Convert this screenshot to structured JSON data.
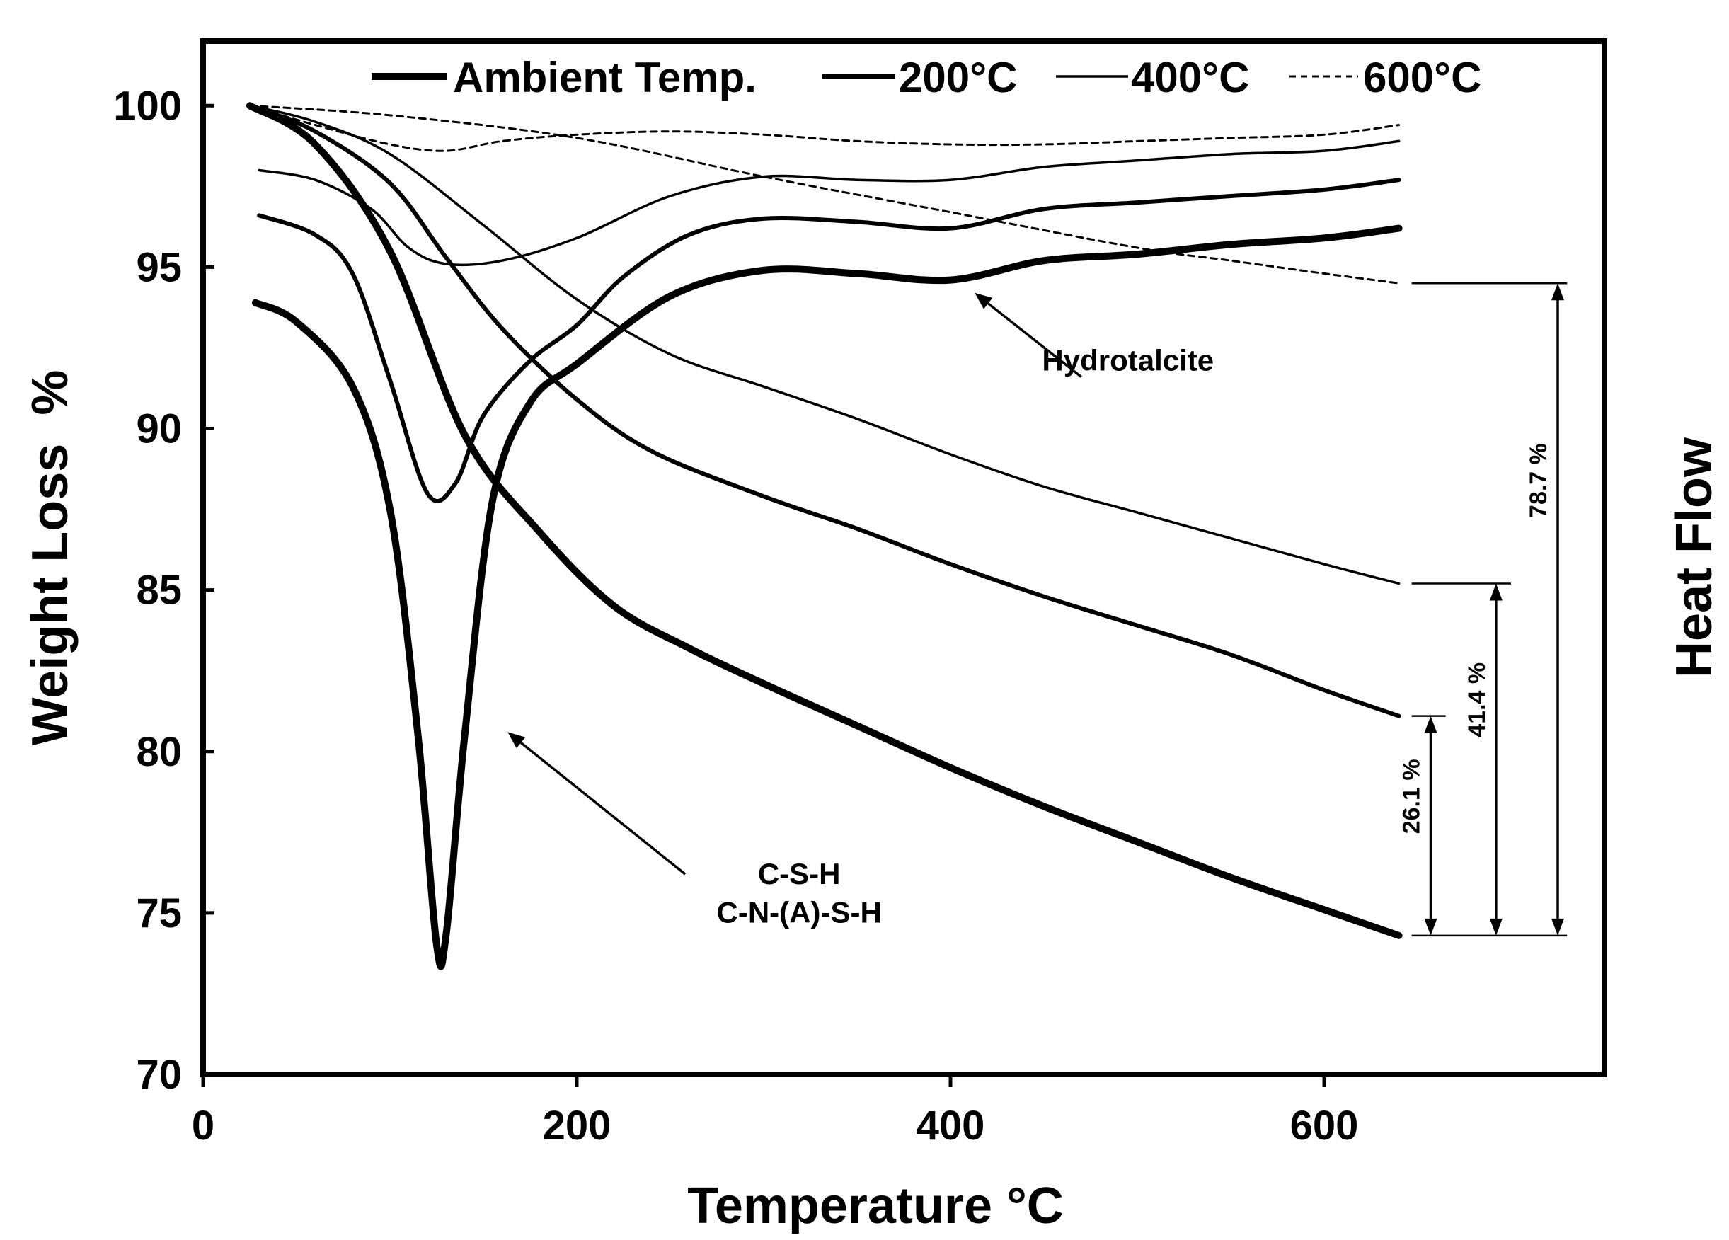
{
  "chart_data": {
    "type": "line",
    "title": "",
    "xlabel": "Temperature",
    "xlabel_unit": "°C",
    "ylabel": "Weight Loss  %",
    "y2label": "Heat Flow",
    "xlim": [
      0,
      750
    ],
    "ylim": [
      70,
      102
    ],
    "x_ticks": [
      0,
      200,
      400,
      600
    ],
    "y_ticks": [
      70,
      75,
      80,
      85,
      90,
      95,
      100
    ],
    "grid": false,
    "legend_position": "top",
    "legend": [
      {
        "name": "Ambient Temp.",
        "style": "thick"
      },
      {
        "name": "200°C",
        "style": "medium"
      },
      {
        "name": "400°C",
        "style": "thin"
      },
      {
        "name": "600°C",
        "style": "dashed"
      }
    ],
    "series": [
      {
        "name": "Ambient Temp.",
        "kind": "TG",
        "style": "thick",
        "x": [
          25,
          60,
          100,
          140,
          180,
          220,
          260,
          300,
          350,
          400,
          450,
          500,
          550,
          600,
          640
        ],
        "y": [
          100,
          98.8,
          95.5,
          89.8,
          86.8,
          84.5,
          83.2,
          82.1,
          80.8,
          79.5,
          78.3,
          77.2,
          76.1,
          75.1,
          74.3
        ]
      },
      {
        "name": "200°C",
        "kind": "TG",
        "style": "medium",
        "x": [
          25,
          60,
          100,
          130,
          160,
          200,
          240,
          300,
          350,
          400,
          450,
          500,
          550,
          600,
          640
        ],
        "y": [
          100,
          99.2,
          97.6,
          95.3,
          93.1,
          90.9,
          89.3,
          87.9,
          86.9,
          85.8,
          84.8,
          83.9,
          83.0,
          81.9,
          81.1
        ]
      },
      {
        "name": "400°C",
        "kind": "TG",
        "style": "thin",
        "x": [
          25,
          60,
          100,
          150,
          200,
          250,
          300,
          350,
          400,
          450,
          500,
          550,
          600,
          640
        ],
        "y": [
          100,
          99.5,
          98.5,
          96.3,
          94.0,
          92.3,
          91.3,
          90.3,
          89.2,
          88.2,
          87.4,
          86.6,
          85.8,
          85.2
        ]
      },
      {
        "name": "600°C",
        "kind": "TG",
        "style": "dashed",
        "x": [
          25,
          100,
          200,
          300,
          400,
          500,
          550,
          600,
          640
        ],
        "y": [
          100,
          99.7,
          99.0,
          97.8,
          96.7,
          95.6,
          95.2,
          94.8,
          94.5
        ]
      },
      {
        "name": "Ambient Temp.",
        "kind": "HeatFlow",
        "style": "thick",
        "x": [
          28,
          50,
          80,
          100,
          115,
          125,
          130,
          140,
          155,
          175,
          200,
          250,
          300,
          350,
          400,
          450,
          500,
          550,
          600,
          640
        ],
        "y": [
          93.9,
          93.3,
          91.3,
          87.5,
          80.5,
          74.0,
          74.3,
          80.5,
          87.8,
          90.8,
          92.0,
          94.1,
          94.9,
          94.8,
          94.6,
          95.2,
          95.4,
          95.7,
          95.9,
          96.2
        ]
      },
      {
        "name": "200°C",
        "kind": "HeatFlow",
        "style": "medium",
        "x": [
          30,
          60,
          80,
          100,
          120,
          135,
          150,
          175,
          200,
          225,
          260,
          300,
          350,
          400,
          450,
          500,
          550,
          600,
          640
        ],
        "y": [
          96.6,
          96.0,
          94.8,
          91.5,
          88.0,
          88.3,
          90.4,
          92.1,
          93.2,
          94.7,
          96.0,
          96.5,
          96.4,
          96.2,
          96.8,
          97.0,
          97.2,
          97.4,
          97.7
        ]
      },
      {
        "name": "400°C",
        "kind": "HeatFlow",
        "style": "thin",
        "x": [
          30,
          60,
          90,
          110,
          130,
          160,
          200,
          250,
          300,
          350,
          400,
          450,
          500,
          550,
          600,
          640
        ],
        "y": [
          98.0,
          97.7,
          96.8,
          95.6,
          95.1,
          95.2,
          95.9,
          97.2,
          97.8,
          97.7,
          97.7,
          98.1,
          98.3,
          98.5,
          98.6,
          98.9
        ]
      },
      {
        "name": "600°C",
        "kind": "HeatFlow",
        "style": "dashed",
        "x": [
          25,
          60,
          100,
          130,
          160,
          200,
          250,
          300,
          350,
          400,
          450,
          500,
          550,
          600,
          640
        ],
        "y": [
          100.0,
          99.4,
          98.8,
          98.6,
          98.9,
          99.1,
          99.2,
          99.1,
          98.9,
          98.8,
          98.8,
          98.9,
          99.0,
          99.1,
          99.4
        ]
      }
    ],
    "annotations": [
      {
        "text": "Hydrotalcite",
        "x": 495,
        "y": 91.8,
        "arrow_to_x": 413,
        "arrow_to_y": 94.2,
        "arrow_from_x": 470,
        "arrow_from_y": 91.6
      },
      {
        "text": "C-S-H",
        "x": 319,
        "y": 75.9,
        "arrow_to_x": 163,
        "arrow_to_y": 80.6,
        "arrow_from_x": 258,
        "arrow_from_y": 76.2
      },
      {
        "text": "C-N-(A)-S-H",
        "x": 319,
        "y": 74.7
      }
    ],
    "weight_loss_markers": [
      {
        "label": "26.1 %",
        "x": 657,
        "y_top": 81.1,
        "y_bottom": 74.3
      },
      {
        "label": "41.4 %",
        "x": 692,
        "y_top": 85.2,
        "y_bottom": 74.3
      },
      {
        "label": "78.7 %",
        "x": 725,
        "y_top": 94.5,
        "y_bottom": 74.3
      }
    ]
  }
}
